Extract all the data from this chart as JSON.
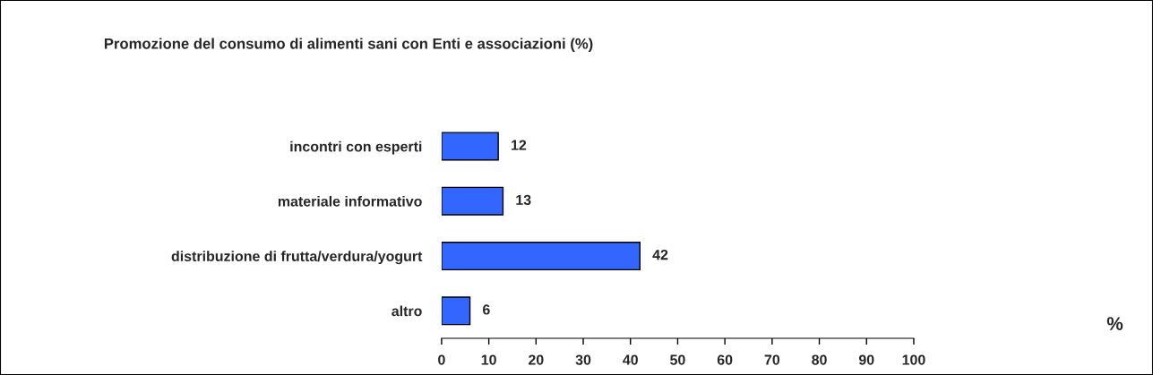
{
  "chart_data": {
    "type": "bar",
    "orientation": "horizontal",
    "title": "Promozione del consumo di alimenti sani con Enti e associazioni (%)",
    "annotations": [
      "%"
    ],
    "categories": [
      "incontri con esperti",
      "materiale informativo",
      "distribuzione di frutta/verdura/yogurt",
      "altro"
    ],
    "values": [
      12,
      13,
      42,
      6
    ],
    "color": "#3366ff",
    "xlim": [
      0,
      100
    ],
    "xticks": [
      0,
      10,
      20,
      30,
      40,
      50,
      60,
      70,
      80,
      90,
      100
    ],
    "data_labels": true,
    "grid": false
  }
}
